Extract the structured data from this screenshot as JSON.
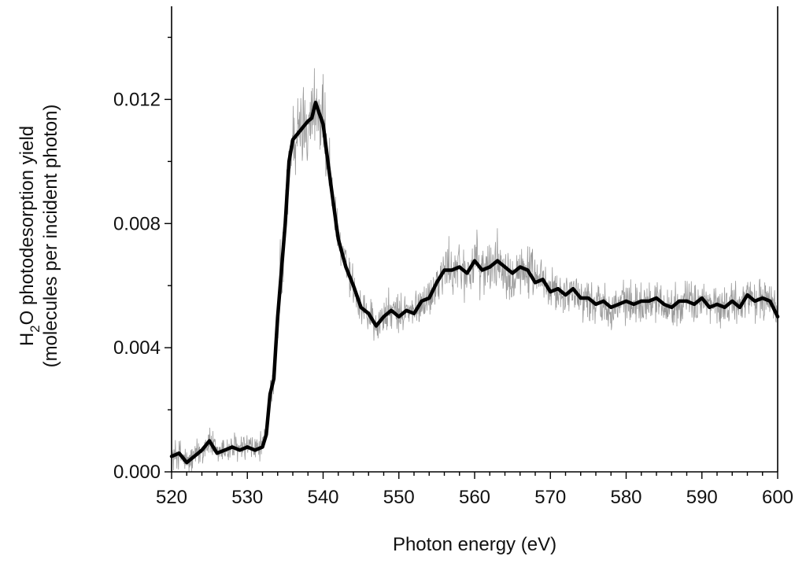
{
  "chart_data": {
    "type": "line",
    "xlabel": "Photon energy (eV)",
    "ylabel": {
      "line1_prefix": "H",
      "line1_sub": "2",
      "line1_suffix": "O photodesorption yield",
      "line2": "(molecules per incident photon)"
    },
    "xlim": [
      520,
      600
    ],
    "ylim": [
      0,
      0.015
    ],
    "x_ticks": [
      520,
      530,
      540,
      550,
      560,
      570,
      580,
      590,
      600
    ],
    "x_tick_labels": [
      "520",
      "530",
      "540",
      "550",
      "560",
      "570",
      "580",
      "590",
      "600"
    ],
    "y_ticks": [
      0,
      0.004,
      0.008,
      0.012
    ],
    "y_tick_labels": [
      "0.000",
      "0.004",
      "0.008",
      "0.012"
    ],
    "grid": false,
    "legend": "none",
    "colors": {
      "raw": "#9a9a9a",
      "smoothed": "#000000",
      "axis": "#000000"
    },
    "series": [
      {
        "role": "smoothed",
        "x": [
          520,
          521,
          522,
          523,
          524,
          525,
          526,
          527,
          528,
          529,
          530,
          531,
          532,
          532.5,
          533,
          533.5,
          534,
          535,
          535.5,
          536,
          537,
          538,
          538.5,
          539,
          540,
          541,
          542,
          543,
          544,
          545,
          546,
          547,
          548,
          549,
          550,
          551,
          552,
          553,
          554,
          555,
          556,
          557,
          558,
          559,
          560,
          561,
          562,
          563,
          564,
          565,
          566,
          567,
          568,
          569,
          570,
          571,
          572,
          573,
          574,
          575,
          576,
          577,
          578,
          579,
          580,
          581,
          582,
          583,
          584,
          585,
          586,
          587,
          588,
          589,
          590,
          591,
          592,
          593,
          594,
          595,
          596,
          597,
          598,
          599,
          600
        ],
        "y": [
          0.0005,
          0.0006,
          0.0003,
          0.0005,
          0.0007,
          0.001,
          0.0006,
          0.0007,
          0.0008,
          0.0007,
          0.0008,
          0.0007,
          0.0008,
          0.0012,
          0.0025,
          0.003,
          0.005,
          0.008,
          0.01,
          0.0107,
          0.011,
          0.0113,
          0.0114,
          0.0119,
          0.0112,
          0.0093,
          0.0075,
          0.0066,
          0.006,
          0.0053,
          0.0051,
          0.0047,
          0.005,
          0.0052,
          0.005,
          0.0052,
          0.0051,
          0.0055,
          0.0056,
          0.0061,
          0.0065,
          0.0065,
          0.0066,
          0.0064,
          0.0068,
          0.0065,
          0.0066,
          0.0068,
          0.0066,
          0.0064,
          0.0066,
          0.0065,
          0.0061,
          0.0062,
          0.0058,
          0.0059,
          0.0057,
          0.0059,
          0.0056,
          0.0056,
          0.0054,
          0.0055,
          0.0053,
          0.0054,
          0.0055,
          0.0054,
          0.0055,
          0.0055,
          0.0056,
          0.0054,
          0.0053,
          0.0055,
          0.0055,
          0.0054,
          0.0056,
          0.0053,
          0.0054,
          0.0053,
          0.0055,
          0.0053,
          0.0057,
          0.0055,
          0.0056,
          0.0055,
          0.005
        ]
      }
    ]
  }
}
